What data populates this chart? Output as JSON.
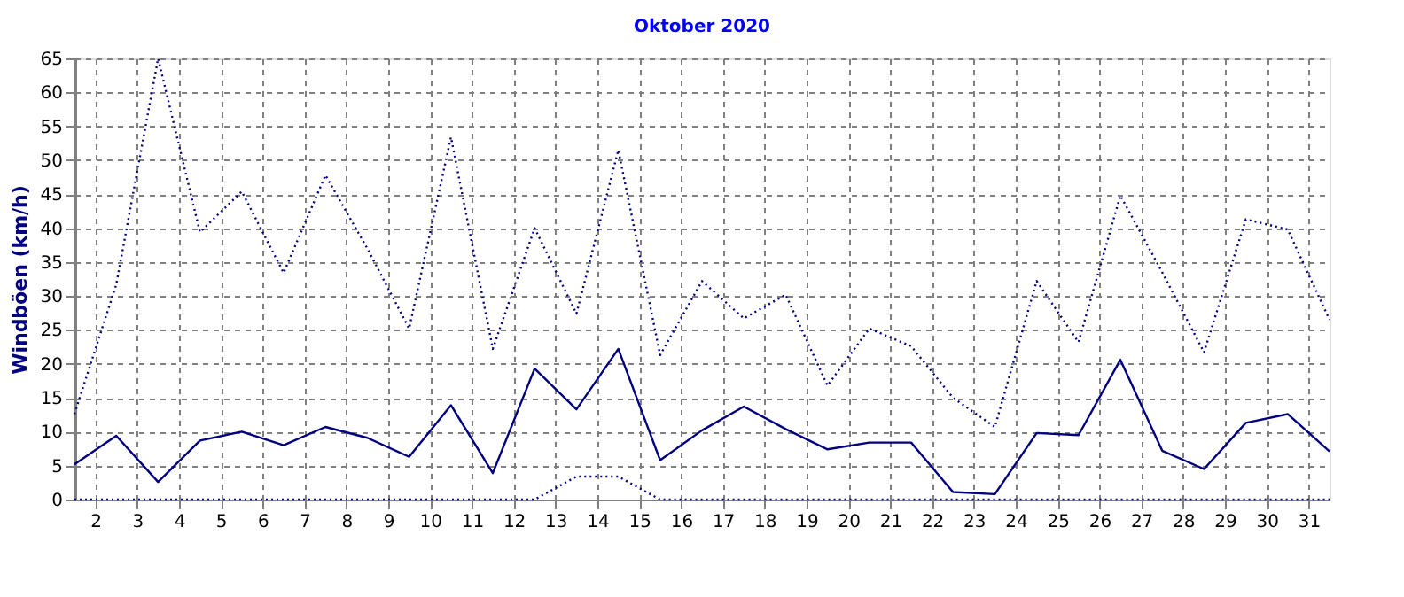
{
  "chart_data": {
    "type": "line",
    "title": "Oktober 2020",
    "ylabel": "Windböen (km/h)",
    "x": [
      1.5,
      2.5,
      3.5,
      4.5,
      5.5,
      6.5,
      7.5,
      8.5,
      9.5,
      10.5,
      11.5,
      12.5,
      13.5,
      14.5,
      15.5,
      16.5,
      17.5,
      18.5,
      19.5,
      20.5,
      21.5,
      22.5,
      23.5,
      24.5,
      25.5,
      26.5,
      27.5,
      28.5,
      29.5,
      30.5,
      31.5
    ],
    "series": [
      {
        "color": "#000080",
        "line_style": "dotted",
        "values": [
          12.6,
          31.7,
          65,
          39.4,
          45.4,
          33.4,
          47.8,
          37,
          25.2,
          53.4,
          22.2,
          40.0,
          27.4,
          51.5,
          21.3,
          32.2,
          26.7,
          30.2,
          16.8,
          25.2,
          22.6,
          15.0,
          10.7,
          32.2,
          23.2,
          44.8,
          33.5,
          21.7,
          41.3,
          39.8,
          26.5
        ]
      },
      {
        "color": "#000080",
        "line_style": "solid",
        "values": [
          5.2,
          9.4,
          2.6,
          8.7,
          10.0,
          8.0,
          10.7,
          9.1,
          6.3,
          13.9,
          3.9,
          19.3,
          13.3,
          22.2,
          5.8,
          10.2,
          13.7,
          10.4,
          7.4,
          8.4,
          8.4,
          1.1,
          0.8,
          9.8,
          9.5,
          20.6,
          7.2,
          4.5,
          11.3,
          12.6,
          7.1
        ]
      },
      {
        "color": "#000080",
        "line_style": "dotted",
        "values": [
          0,
          0,
          0,
          0,
          0,
          0,
          0,
          0,
          0,
          0,
          0,
          0,
          3.4,
          3.4,
          0,
          0,
          0,
          0,
          0,
          0,
          0,
          0,
          0,
          0,
          0,
          0,
          0,
          0,
          0,
          0,
          0
        ]
      }
    ],
    "xlim": [
      1.5,
      31.5
    ],
    "xticks": [
      2,
      3,
      4,
      5,
      6,
      7,
      8,
      9,
      10,
      11,
      12,
      13,
      14,
      15,
      16,
      17,
      18,
      19,
      20,
      21,
      22,
      23,
      24,
      25,
      26,
      27,
      28,
      29,
      30,
      31
    ],
    "ylim": [
      0,
      65
    ],
    "yticks": [
      0,
      5,
      10,
      15,
      20,
      25,
      30,
      35,
      40,
      45,
      50,
      55,
      60,
      65
    ],
    "grid": true,
    "legend": false,
    "marker": "none"
  }
}
